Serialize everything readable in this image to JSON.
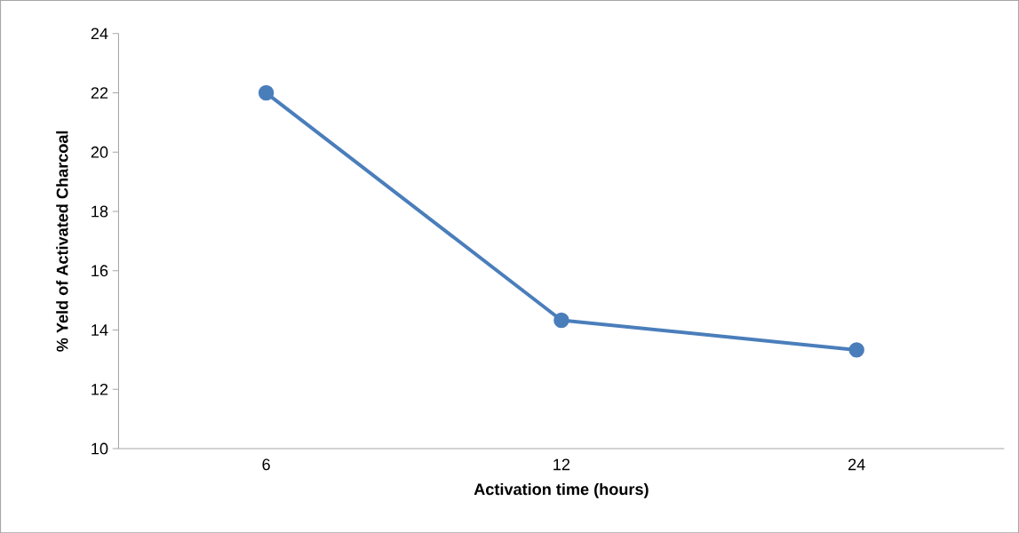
{
  "chart_data": {
    "type": "line",
    "xlabel": "Activation time (hours)",
    "ylabel": "% Yeld of Activated Charcoal",
    "categories": [
      "6",
      "12",
      "24"
    ],
    "series": [
      {
        "color": "#4a7ebb",
        "values": [
          22,
          14.33,
          13.33
        ]
      }
    ],
    "ylim": [
      10,
      24
    ],
    "yticks": [
      10,
      12,
      14,
      16,
      18,
      20,
      22,
      24
    ],
    "grid": false,
    "marker": "circle",
    "line_style": "solid"
  }
}
